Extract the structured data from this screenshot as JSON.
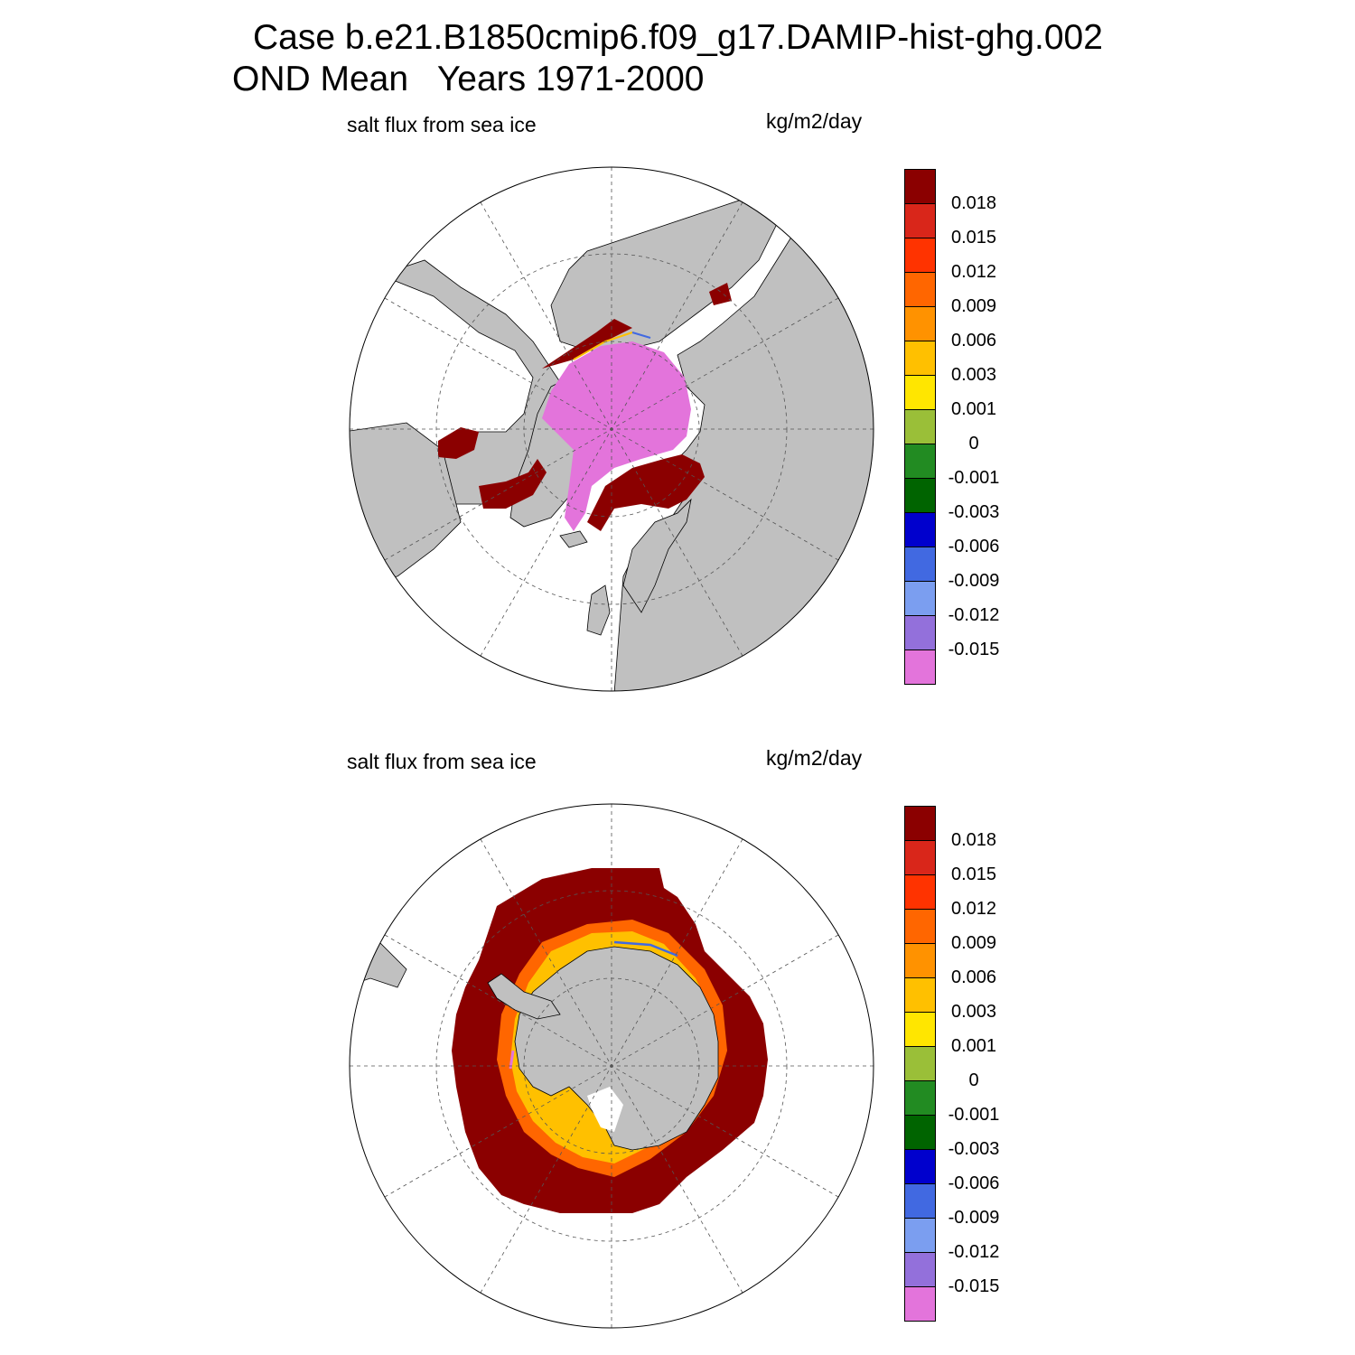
{
  "figure": {
    "title_line1": "Case b.e21.B1850cmip6.f09_g17.DAMIP-hist-ghg.002",
    "title_line2": "OND Mean   Years 1971-2000"
  },
  "colors": {
    "land": "#c0c0c0",
    "ocean": "#ffffff",
    "grid": "#555555"
  },
  "colorbar": {
    "labels": [
      "0.018",
      "0.015",
      "0.012",
      "0.009",
      "0.006",
      "0.003",
      "0.001",
      "0",
      "-0.001",
      "-0.003",
      "-0.006",
      "-0.009",
      "-0.012",
      "-0.015"
    ],
    "colors": [
      "#8b0000",
      "#d9261a",
      "#ff3300",
      "#ff6600",
      "#ff9200",
      "#ffc000",
      "#ffe600",
      "#9abf38",
      "#228b22",
      "#006400",
      "#0000cd",
      "#4169e1",
      "#7b9ef0",
      "#9370db",
      "#e374db"
    ]
  },
  "panels": [
    {
      "name": "north",
      "title": "salt flux from sea ice",
      "units": "kg/m2/day",
      "hemisphere": "Arctic (Northern Hemisphere polar stereographic)"
    },
    {
      "name": "south",
      "title": "salt flux from sea ice",
      "units": "kg/m2/day",
      "hemisphere": "Antarctic (Southern Hemisphere polar stereographic)"
    }
  ]
}
